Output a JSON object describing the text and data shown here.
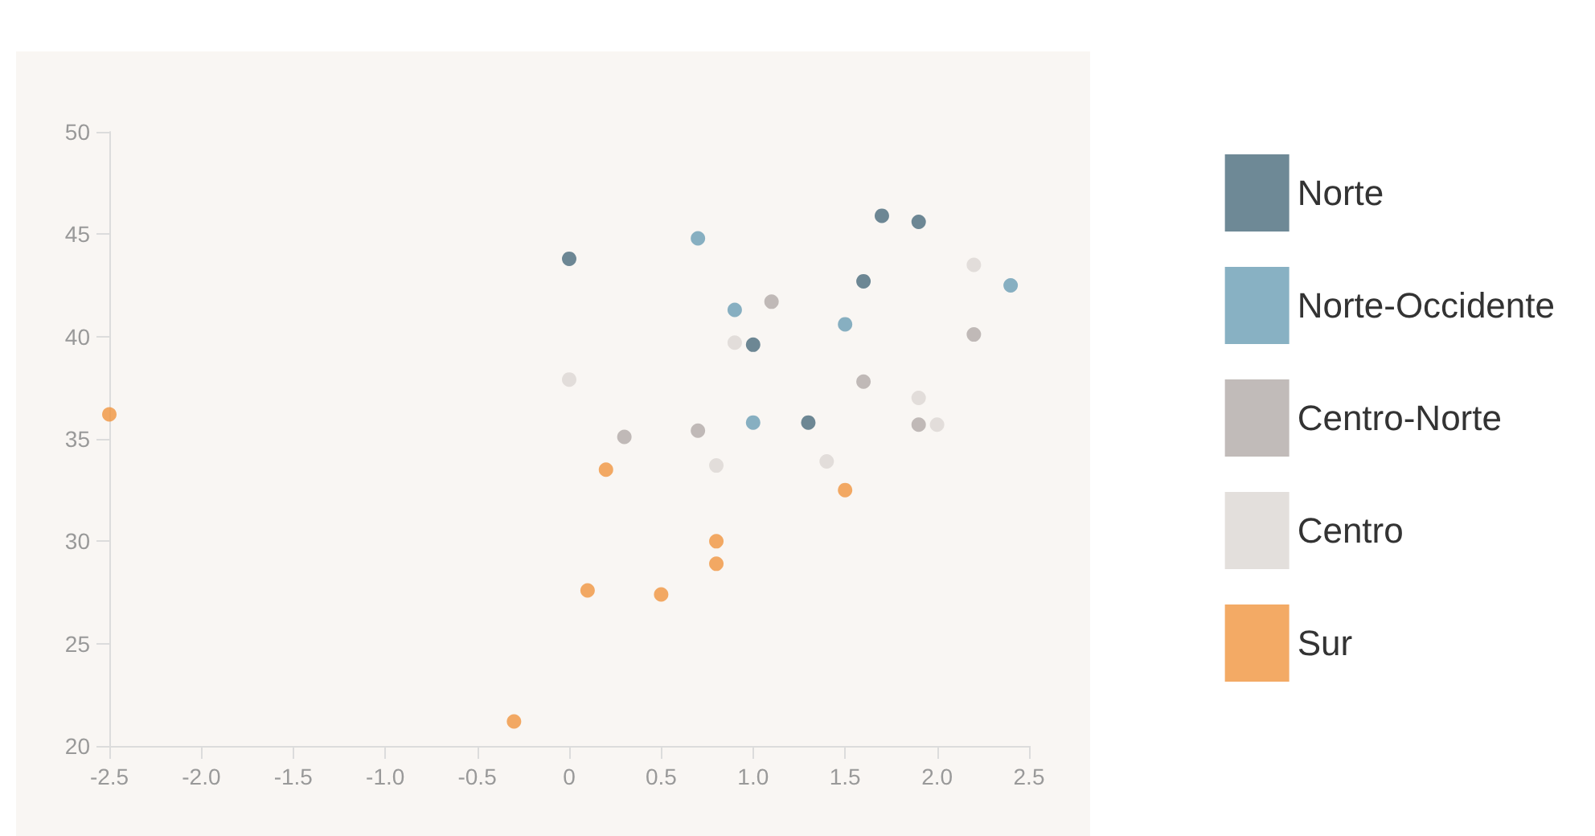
{
  "chart_data": {
    "type": "scatter",
    "xlim": [
      -2.5,
      2.5
    ],
    "xticks": [
      -2.5,
      {
        "value": -2,
        "label": "-2.0"
      },
      -1.5,
      {
        "value": -1,
        "label": "-1.0"
      },
      -0.5,
      0,
      0.5,
      {
        "value": 1,
        "label": "1.0"
      },
      1.5,
      {
        "value": 2,
        "label": "2.0"
      },
      2.5
    ],
    "ylim": [
      20,
      50
    ],
    "yticks": [
      20,
      25,
      30,
      35,
      40,
      45,
      50
    ],
    "grid": false,
    "legend": "right",
    "marker": "circle",
    "series": [
      {
        "name": "Norte",
        "color": "#4a6b7c",
        "x": [
          0,
          1.7,
          1.9,
          1.6,
          1.0,
          1.3
        ],
        "values": [
          43.8,
          45.9,
          45.6,
          42.7,
          39.6,
          35.8
        ]
      },
      {
        "name": "Norte-Occidente",
        "color": "#6a9db4",
        "x": [
          0.7,
          0.9,
          1.5,
          2.4,
          1.0
        ],
        "values": [
          44.8,
          41.3,
          40.6,
          42.5,
          35.8
        ]
      },
      {
        "name": "Centro-Norte",
        "color": "#b2aaa7",
        "x": [
          1.1,
          1.6,
          2.2,
          0.7,
          0.3,
          1.9
        ],
        "values": [
          41.7,
          37.8,
          40.1,
          35.4,
          35.1,
          35.7
        ]
      },
      {
        "name": "Centro",
        "color": "#dcd7d3",
        "x": [
          0,
          0.9,
          2.2,
          1.9,
          2.0,
          0.8,
          1.4
        ],
        "values": [
          37.9,
          39.7,
          43.5,
          37.0,
          35.7,
          33.7,
          33.9
        ]
      },
      {
        "name": "Sur",
        "color": "#f0953f",
        "x": [
          -2.5,
          0.2,
          1.5,
          0.8,
          0.8,
          0.1,
          0.5,
          -0.3
        ],
        "values": [
          36.2,
          33.5,
          32.5,
          30.0,
          28.9,
          27.6,
          27.4,
          21.2
        ]
      }
    ]
  }
}
